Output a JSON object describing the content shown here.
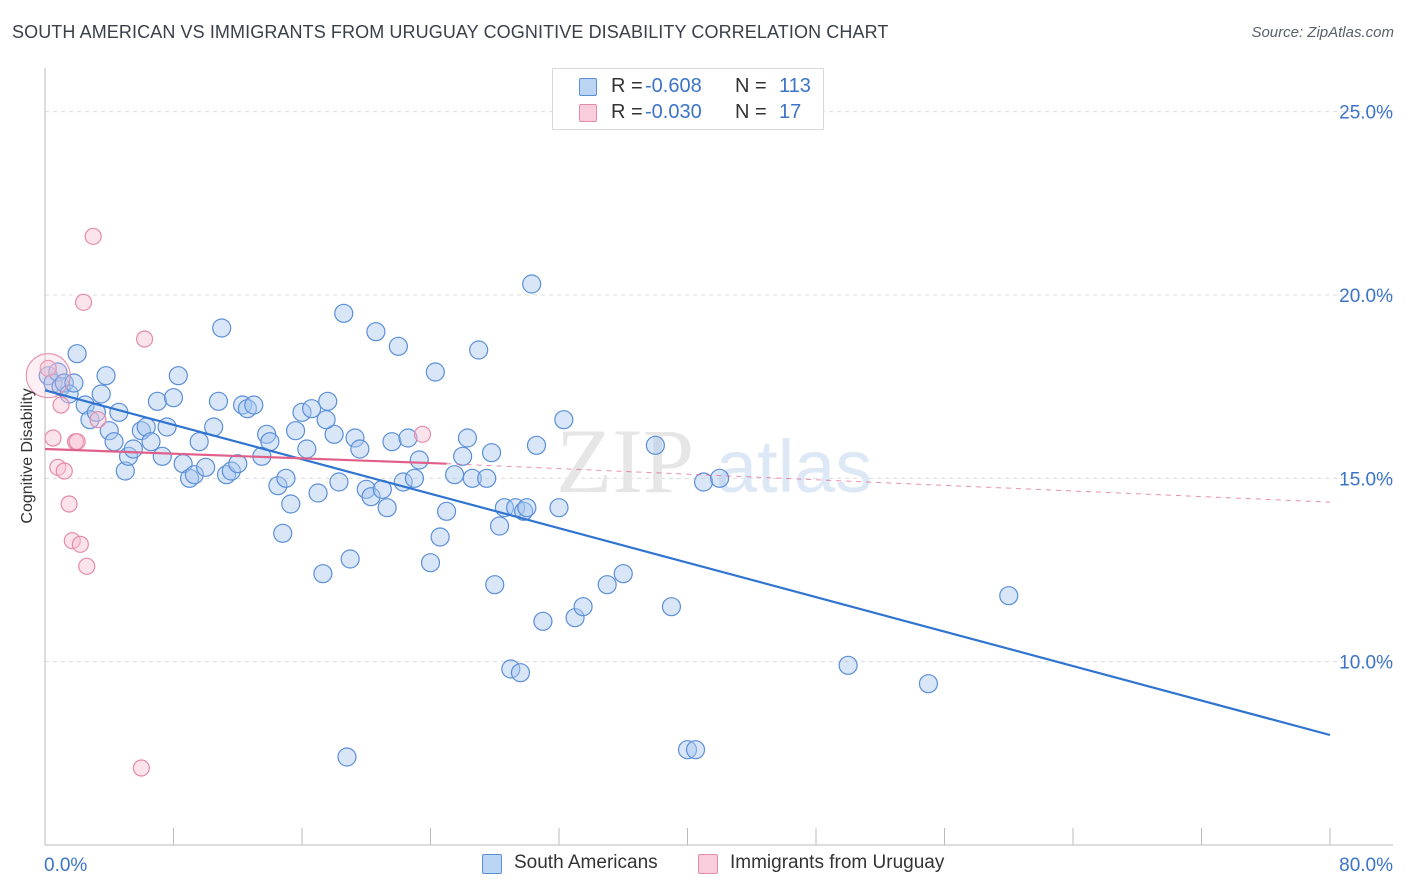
{
  "title": "SOUTH AMERICAN VS IMMIGRANTS FROM URUGUAY COGNITIVE DISABILITY CORRELATION CHART",
  "source": "Source: ZipAtlas.com",
  "watermark": {
    "zip": "ZIP",
    "atlas": "atlas"
  },
  "legend_top": {
    "rows": [
      {
        "r_label": "R =",
        "r_value": "-0.608",
        "n_label": "N =",
        "n_value": "113"
      },
      {
        "r_label": "R =",
        "r_value": "-0.030",
        "n_label": "N =",
        "n_value": "17"
      }
    ]
  },
  "legend_bottom": [
    {
      "label": "South Americans"
    },
    {
      "label": "Immigrants from Uruguay"
    }
  ],
  "colors": {
    "blue_fill": "#a9c8f0",
    "blue_stroke": "#5b8fd8",
    "blue_line": "#2f74d0",
    "pink_fill": "#f7c0d2",
    "pink_stroke": "#e68aaa",
    "pink_line": "#e0608a",
    "tick_text": "#3b74c8",
    "grid": "#dcdcdc"
  },
  "chart_data": {
    "type": "scatter",
    "title": "SOUTH AMERICAN VS IMMIGRANTS FROM URUGUAY COGNITIVE DISABILITY CORRELATION CHART",
    "xlabel": "",
    "ylabel": "Cognitive Disability",
    "xlim": [
      0,
      80
    ],
    "ylim": [
      5,
      26
    ],
    "x_tick_labels": [
      "0.0%",
      "80.0%"
    ],
    "y_ticks": [
      10,
      15,
      20,
      25
    ],
    "y_tick_labels": [
      "10.0%",
      "15.0%",
      "20.0%",
      "25.0%"
    ],
    "grid": true,
    "legend_position": "top-center",
    "series": [
      {
        "name": "South Americans",
        "R": -0.608,
        "N": 113,
        "trend": {
          "x": [
            0,
            80
          ],
          "y": [
            17.4,
            8.0
          ],
          "style": "solid"
        },
        "points": [
          [
            0.2,
            17.8
          ],
          [
            0.5,
            17.6
          ],
          [
            0.8,
            17.9
          ],
          [
            1.0,
            17.5
          ],
          [
            1.2,
            17.6
          ],
          [
            1.5,
            17.3
          ],
          [
            1.8,
            17.6
          ],
          [
            2.0,
            18.4
          ],
          [
            2.5,
            17.0
          ],
          [
            2.8,
            16.6
          ],
          [
            3.2,
            16.8
          ],
          [
            3.5,
            17.3
          ],
          [
            3.8,
            17.8
          ],
          [
            4.0,
            16.3
          ],
          [
            4.3,
            16.0
          ],
          [
            4.6,
            16.8
          ],
          [
            5.0,
            15.2
          ],
          [
            5.2,
            15.6
          ],
          [
            5.5,
            15.8
          ],
          [
            6.0,
            16.3
          ],
          [
            6.3,
            16.4
          ],
          [
            6.6,
            16.0
          ],
          [
            7.0,
            17.1
          ],
          [
            7.3,
            15.6
          ],
          [
            7.6,
            16.4
          ],
          [
            8.0,
            17.2
          ],
          [
            8.3,
            17.8
          ],
          [
            8.6,
            15.4
          ],
          [
            9.0,
            15.0
          ],
          [
            9.3,
            15.1
          ],
          [
            9.6,
            16.0
          ],
          [
            10.0,
            15.3
          ],
          [
            10.5,
            16.4
          ],
          [
            10.8,
            17.1
          ],
          [
            11.0,
            19.1
          ],
          [
            11.3,
            15.1
          ],
          [
            11.6,
            15.2
          ],
          [
            12.0,
            15.4
          ],
          [
            12.3,
            17.0
          ],
          [
            12.6,
            16.9
          ],
          [
            13.0,
            17.0
          ],
          [
            13.5,
            15.6
          ],
          [
            13.8,
            16.2
          ],
          [
            14.0,
            16.0
          ],
          [
            14.5,
            14.8
          ],
          [
            14.8,
            13.5
          ],
          [
            15.0,
            15.0
          ],
          [
            15.3,
            14.3
          ],
          [
            15.6,
            16.3
          ],
          [
            16.0,
            16.8
          ],
          [
            16.3,
            15.8
          ],
          [
            16.6,
            16.9
          ],
          [
            17.0,
            14.6
          ],
          [
            17.3,
            12.4
          ],
          [
            17.6,
            17.1
          ],
          [
            18.0,
            16.2
          ],
          [
            18.3,
            14.9
          ],
          [
            18.6,
            19.5
          ],
          [
            19.0,
            12.8
          ],
          [
            19.3,
            16.1
          ],
          [
            19.6,
            15.8
          ],
          [
            20.0,
            14.7
          ],
          [
            20.3,
            14.5
          ],
          [
            20.6,
            19.0
          ],
          [
            21.0,
            14.7
          ],
          [
            21.3,
            14.2
          ],
          [
            21.6,
            16.0
          ],
          [
            22.0,
            18.6
          ],
          [
            22.3,
            14.9
          ],
          [
            22.6,
            16.1
          ],
          [
            23.0,
            15.0
          ],
          [
            23.3,
            15.5
          ],
          [
            24.0,
            12.7
          ],
          [
            24.3,
            17.9
          ],
          [
            24.6,
            13.4
          ],
          [
            25.0,
            14.1
          ],
          [
            25.5,
            15.1
          ],
          [
            26.0,
            15.6
          ],
          [
            26.3,
            16.1
          ],
          [
            26.6,
            15.0
          ],
          [
            27.0,
            18.5
          ],
          [
            27.5,
            15.0
          ],
          [
            27.8,
            15.7
          ],
          [
            28.0,
            12.1
          ],
          [
            28.3,
            13.7
          ],
          [
            28.6,
            14.2
          ],
          [
            29.0,
            9.8
          ],
          [
            29.3,
            14.2
          ],
          [
            29.6,
            9.7
          ],
          [
            29.8,
            14.1
          ],
          [
            30.0,
            14.2
          ],
          [
            30.3,
            20.3
          ],
          [
            30.6,
            15.9
          ],
          [
            31.0,
            11.1
          ],
          [
            32.0,
            14.2
          ],
          [
            32.3,
            16.6
          ],
          [
            33.0,
            11.2
          ],
          [
            33.5,
            11.5
          ],
          [
            35.0,
            12.1
          ],
          [
            36.0,
            12.4
          ],
          [
            38.0,
            15.9
          ],
          [
            39.0,
            11.5
          ],
          [
            40.0,
            7.6
          ],
          [
            40.5,
            7.6
          ],
          [
            41.0,
            14.9
          ],
          [
            42.0,
            15.0
          ],
          [
            50.0,
            9.9
          ],
          [
            55.0,
            9.4
          ],
          [
            60.0,
            11.8
          ],
          [
            18.8,
            7.4
          ],
          [
            17.5,
            16.6
          ]
        ]
      },
      {
        "name": "Immigrants from Uruguay",
        "R": -0.03,
        "N": 17,
        "trend": {
          "x": [
            0,
            25
          ],
          "y": [
            15.8,
            15.4
          ],
          "style": "solid",
          "extended_to_x": 80,
          "extended_y": 14.35,
          "extended_style": "dashed"
        },
        "points": [
          [
            0.2,
            18.0
          ],
          [
            0.5,
            16.1
          ],
          [
            0.8,
            15.3
          ],
          [
            1.0,
            17.0
          ],
          [
            1.2,
            15.2
          ],
          [
            1.5,
            14.3
          ],
          [
            1.7,
            13.3
          ],
          [
            1.9,
            16.0
          ],
          [
            2.2,
            13.2
          ],
          [
            2.4,
            19.8
          ],
          [
            2.6,
            12.6
          ],
          [
            3.0,
            21.6
          ],
          [
            3.3,
            16.6
          ],
          [
            6.2,
            18.8
          ],
          [
            6.0,
            7.1
          ],
          [
            23.5,
            16.2
          ],
          [
            2.0,
            16.0
          ]
        ]
      }
    ]
  }
}
